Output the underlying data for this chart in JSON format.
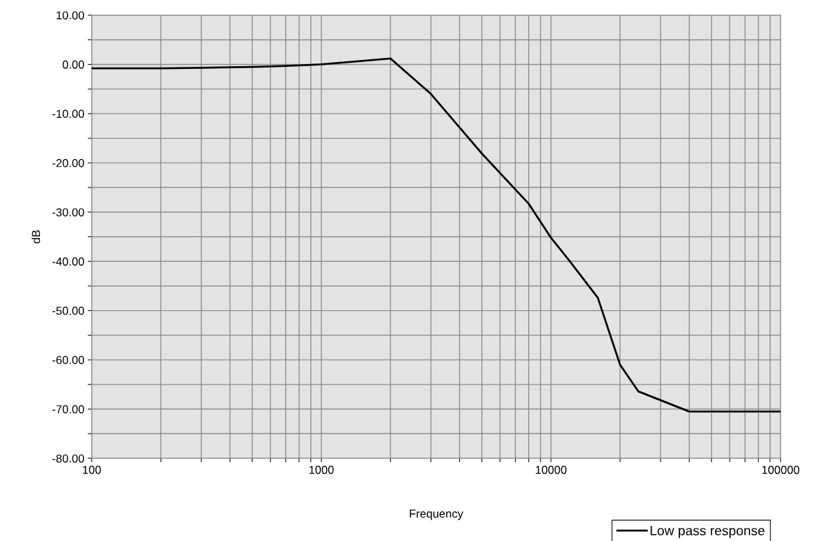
{
  "chart_data": {
    "type": "line",
    "xlabel": "Frequency",
    "ylabel": "dB",
    "log": "x",
    "x": [
      100,
      200,
      300,
      400,
      500,
      600,
      700,
      800,
      900,
      1000,
      2000,
      3000,
      5000,
      8000,
      10000,
      12000,
      16000,
      20000,
      24000,
      40000,
      100000
    ],
    "series": [
      {
        "name": "Low pass response",
        "color": "#000000",
        "values": [
          -0.8,
          -0.8,
          -0.7,
          -0.6,
          -0.5,
          -0.4,
          -0.3,
          -0.2,
          -0.1,
          0.0,
          1.2,
          -6.0,
          -18.1,
          -28.3,
          -35.2,
          -39.8,
          -47.4,
          -61.0,
          -66.4,
          -70.5,
          -70.5
        ]
      }
    ],
    "xlim": [
      100,
      100000
    ],
    "xticks": [
      100,
      {
        "value": 200,
        "label": null
      },
      {
        "value": 300,
        "label": null
      },
      {
        "value": 400,
        "label": null
      },
      {
        "value": 500,
        "label": null
      },
      {
        "value": 600,
        "label": null
      },
      {
        "value": 700,
        "label": null
      },
      {
        "value": 800,
        "label": null
      },
      {
        "value": 900,
        "label": null
      },
      1000,
      {
        "value": 2000,
        "label": null
      },
      {
        "value": 3000,
        "label": null
      },
      {
        "value": 4000,
        "label": null
      },
      {
        "value": 5000,
        "label": null
      },
      {
        "value": 6000,
        "label": null
      },
      {
        "value": 7000,
        "label": null
      },
      {
        "value": 8000,
        "label": null
      },
      {
        "value": 9000,
        "label": null
      },
      10000,
      {
        "value": 20000,
        "label": null
      },
      {
        "value": 30000,
        "label": null
      },
      {
        "value": 40000,
        "label": null
      },
      {
        "value": 50000,
        "label": null
      },
      {
        "value": 60000,
        "label": null
      },
      {
        "value": 70000,
        "label": null
      },
      {
        "value": 80000,
        "label": null
      },
      {
        "value": 90000,
        "label": null
      },
      100000
    ],
    "ylim": [
      -80,
      10
    ],
    "yticks": [
      {
        "value": -80,
        "label": "-80.00"
      },
      {
        "value": -75,
        "label": null
      },
      {
        "value": -70,
        "label": "-70.00"
      },
      {
        "value": -65,
        "label": null
      },
      {
        "value": -60,
        "label": "-60.00"
      },
      {
        "value": -55,
        "label": null
      },
      {
        "value": -50,
        "label": "-50.00"
      },
      {
        "value": -45,
        "label": null
      },
      {
        "value": -40,
        "label": "-40.00"
      },
      {
        "value": -35,
        "label": null
      },
      {
        "value": -30,
        "label": "-30.00"
      },
      {
        "value": -25,
        "label": null
      },
      {
        "value": -20,
        "label": "-20.00"
      },
      {
        "value": -15,
        "label": null
      },
      {
        "value": -10,
        "label": "-10.00"
      },
      {
        "value": -5,
        "label": null
      },
      {
        "value": 0,
        "label": "0.00"
      },
      {
        "value": 5,
        "label": null
      },
      {
        "value": 10,
        "label": "10.00"
      }
    ],
    "grid": true,
    "legend": "bottom right",
    "marker": "none",
    "line_style": "solid"
  }
}
